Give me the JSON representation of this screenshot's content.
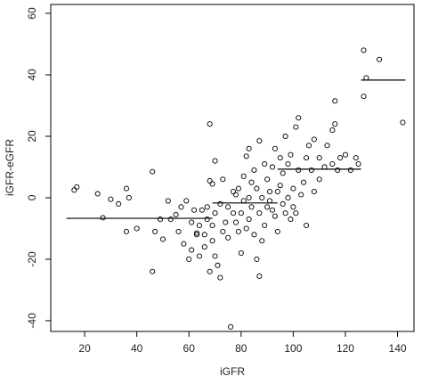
{
  "chart_data": {
    "type": "scatter",
    "x_label": "iGFR",
    "y_label": "iGFR-eGFR",
    "color": "#000000",
    "xlim": [
      7,
      146.3
    ],
    "ylim": [
      -43.5,
      62.9
    ],
    "xticks": [
      20,
      40,
      60,
      80,
      100,
      120,
      140
    ],
    "yticks": [
      -40,
      -20,
      0,
      20,
      40,
      60
    ],
    "x": [
      16,
      17,
      25,
      27,
      30,
      33,
      36,
      36,
      37,
      40,
      46,
      46,
      47,
      49,
      50,
      52,
      53,
      55,
      56,
      57,
      58,
      59,
      60,
      61,
      61,
      62,
      63,
      63,
      64,
      64,
      65,
      66,
      66,
      67,
      67,
      68,
      68,
      68,
      69,
      69,
      69,
      70,
      70,
      70,
      71,
      72,
      72,
      73,
      73,
      74,
      75,
      75,
      76,
      77,
      77,
      78,
      78,
      79,
      79,
      80,
      80,
      81,
      81,
      82,
      82,
      83,
      83,
      83,
      84,
      84,
      85,
      85,
      86,
      86,
      87,
      87,
      87,
      88,
      88,
      89,
      89,
      90,
      90,
      91,
      91,
      92,
      92,
      93,
      93,
      94,
      94,
      95,
      95,
      96,
      96,
      97,
      97,
      98,
      98,
      99,
      99,
      100,
      100,
      101,
      101,
      102,
      102,
      103,
      104,
      105,
      105,
      106,
      107,
      108,
      108,
      110,
      110,
      112,
      113,
      115,
      115,
      116,
      116,
      117,
      118,
      120,
      122,
      124,
      125,
      127,
      127,
      128,
      133,
      142
    ],
    "y": [
      2.5,
      3.5,
      1.3,
      -6.5,
      -0.5,
      -2,
      3,
      -11,
      0,
      -10,
      8.5,
      -24,
      -11,
      -7,
      -13.5,
      -1,
      -7,
      -5.5,
      -11,
      -3,
      -15,
      -1,
      -20,
      -8,
      -17,
      -4,
      -12,
      -11.5,
      -9,
      -19,
      -4,
      -12,
      -16,
      -7,
      -3,
      24,
      5.5,
      -24,
      4.5,
      -9,
      -14,
      12,
      -5,
      -19,
      -22,
      -2,
      -26,
      -11,
      6,
      -8,
      -3,
      -13,
      -42,
      2,
      -5,
      -8,
      1,
      -11,
      3,
      -5,
      -18,
      7,
      -1,
      -10,
      13.5,
      16,
      0,
      -7,
      -3,
      5,
      9,
      -12,
      3,
      -20,
      -25.5,
      18.5,
      -5,
      0,
      -14,
      11,
      -9,
      6,
      -3,
      -1,
      2,
      -4,
      10,
      16,
      -6,
      2,
      -11,
      4,
      13,
      -2,
      8,
      -5,
      20,
      0,
      11,
      -7,
      14,
      3,
      -3,
      23,
      -5,
      9,
      26,
      1,
      5,
      13,
      -9,
      17,
      9,
      2,
      19,
      13,
      6,
      10,
      17,
      22,
      11,
      24,
      31.5,
      9,
      13,
      14,
      9,
      13,
      11,
      48,
      33,
      39,
      45,
      24.5
    ],
    "segments": [
      {
        "x0": 13,
        "x1": 69,
        "y": -6.7
      },
      {
        "x0": 69,
        "x1": 94,
        "y": -1.7
      },
      {
        "x0": 94,
        "x1": 126,
        "y": 9.3
      },
      {
        "x0": 126,
        "x1": 143,
        "y": 38.3
      }
    ]
  }
}
